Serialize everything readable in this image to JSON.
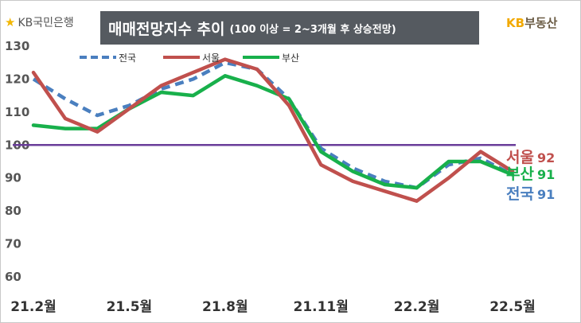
{
  "header": {
    "left_logo_text": "KB국민은행",
    "title_main": "매매전망지수 추이",
    "title_sub": "(100 이상 = 2~3개월 후 상승전망)",
    "right_logo_kb": "KB",
    "right_logo_rest": "부동산"
  },
  "colors": {
    "national": "#4a7fbf",
    "seoul": "#c0504d",
    "busan": "#18b04b",
    "reference": "#6a3d9a",
    "title_bg": "#555a60",
    "logo_yellow": "#f2b705"
  },
  "chart_data": {
    "type": "line",
    "title": "매매전망지수 추이 (100 이상 = 2~3개월 후 상승전망)",
    "x": [
      "21.2월",
      "21.3월",
      "21.4월",
      "21.5월",
      "21.6월",
      "21.7월",
      "21.8월",
      "21.9월",
      "21.10월",
      "21.11월",
      "21.12월",
      "22.1월",
      "22.2월",
      "22.3월",
      "22.4월",
      "22.5월"
    ],
    "x_tick_labels": [
      "21.2월",
      "21.5월",
      "21.8월",
      "21.11월",
      "22.2월",
      "22.5월"
    ],
    "y_ticks": [
      "60",
      "70",
      "80",
      "90",
      "100",
      "110",
      "120",
      "130"
    ],
    "ylim": [
      60,
      130
    ],
    "reference_line": 100,
    "legend_position": "top-left",
    "series": [
      {
        "name": "전국",
        "style": "dashed",
        "values": [
          120,
          114,
          109,
          112,
          117,
          120,
          125,
          123,
          114,
          99,
          93,
          89,
          87,
          94,
          96,
          91
        ]
      },
      {
        "name": "서울",
        "style": "solid",
        "values": [
          122,
          108,
          104,
          111,
          118,
          122,
          126,
          123,
          112,
          94,
          89,
          86,
          83,
          90,
          98,
          92
        ]
      },
      {
        "name": "부산",
        "style": "solid",
        "values": [
          106,
          105,
          105,
          111,
          116,
          115,
          121,
          118,
          114,
          98,
          92,
          88,
          87,
          95,
          95,
          91
        ]
      }
    ],
    "end_labels": [
      {
        "name": "서울",
        "value": "92"
      },
      {
        "name": "부산",
        "value": "91"
      },
      {
        "name": "전국",
        "value": "91"
      }
    ]
  }
}
